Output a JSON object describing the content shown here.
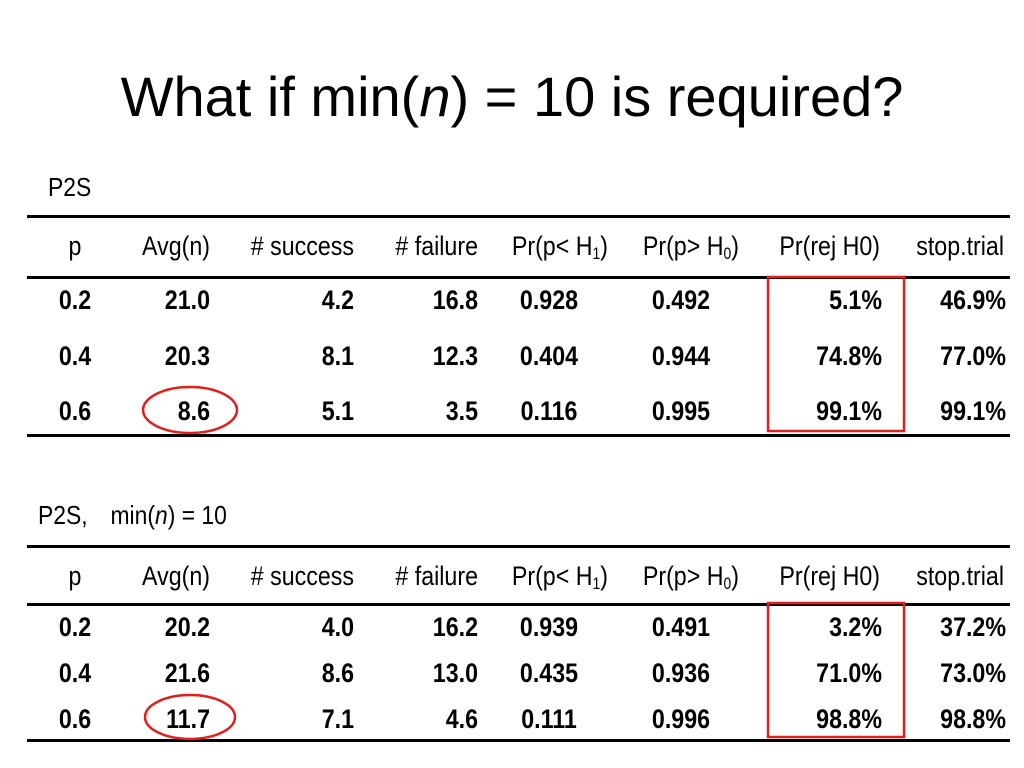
{
  "title": {
    "before": "What if min(",
    "italic": "n",
    "after": ") = 10 is required?"
  },
  "tables": [
    {
      "caption": {
        "label": "P2S",
        "rest_before": "",
        "rest_italic": "",
        "rest_after": ""
      },
      "headers": [
        "p",
        "Avg(n)",
        "# success",
        "# failure",
        "Pr(p< H",
        "1",
        ")",
        "Pr(p> H",
        "0",
        ")",
        "Pr(rej H0)",
        "stop.trial"
      ],
      "rows": [
        [
          "0.2",
          "21.0",
          "4.2",
          "16.8",
          "0.928",
          "0.492",
          "5.1%",
          "46.9%"
        ],
        [
          "0.4",
          "20.3",
          "8.1",
          "12.3",
          "0.404",
          "0.944",
          "74.8%",
          "77.0%"
        ],
        [
          "0.6",
          "8.6",
          "5.1",
          "3.5",
          "0.116",
          "0.995",
          "99.1%",
          "99.1%"
        ]
      ]
    },
    {
      "caption": {
        "label": "P2S,",
        "rest_before": "min(",
        "rest_italic": "n",
        "rest_after": ") = 10"
      },
      "headers": [
        "p",
        "Avg(n)",
        "# success",
        "# failure",
        "Pr(p< H",
        "1",
        ")",
        "Pr(p> H",
        "0",
        ")",
        "Pr(rej H0)",
        "stop.trial"
      ],
      "rows": [
        [
          "0.2",
          "20.2",
          "4.0",
          "16.2",
          "0.939",
          "0.491",
          "3.2%",
          "37.2%"
        ],
        [
          "0.4",
          "21.6",
          "8.6",
          "13.0",
          "0.435",
          "0.936",
          "71.0%",
          "73.0%"
        ],
        [
          "0.6",
          "11.7",
          "7.1",
          "4.6",
          "0.111",
          "0.996",
          "98.8%",
          "98.8%"
        ]
      ]
    }
  ],
  "highlight_color": "#e0201c"
}
